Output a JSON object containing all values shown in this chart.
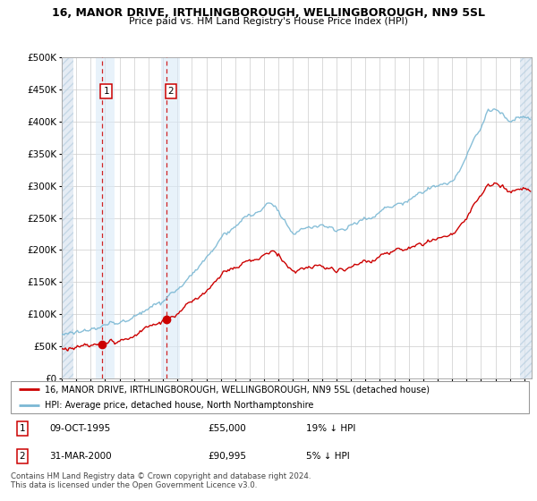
{
  "title": "16, MANOR DRIVE, IRTHLINGBOROUGH, WELLINGBOROUGH, NN9 5SL",
  "subtitle": "Price paid vs. HM Land Registry's House Price Index (HPI)",
  "legend_line1": "16, MANOR DRIVE, IRTHLINGBOROUGH, WELLINGBOROUGH, NN9 5SL (detached house)",
  "legend_line2": "HPI: Average price, detached house, North Northamptonshire",
  "footer": "Contains HM Land Registry data © Crown copyright and database right 2024.\nThis data is licensed under the Open Government Licence v3.0.",
  "transactions": [
    {
      "label": "1",
      "date": "09-OCT-1995",
      "price": 55000,
      "price_str": "£55,000",
      "pct": "19% ↓ HPI",
      "x": 1995.77
    },
    {
      "label": "2",
      "date": "31-MAR-2000",
      "price": 90995,
      "price_str": "£90,995",
      "pct": "5% ↓ HPI",
      "x": 2000.25
    }
  ],
  "hpi_line_color": "#7bb8d4",
  "price_line_color": "#cc0000",
  "transaction_dot_color": "#cc0000",
  "dashed_line_color": "#cc0000",
  "hatch_bg_color": "#dae5f0",
  "transaction_band_color": "#daeaf8",
  "ylim": [
    0,
    500000
  ],
  "yticks": [
    0,
    50000,
    100000,
    150000,
    200000,
    250000,
    300000,
    350000,
    400000,
    450000,
    500000
  ],
  "xlim_min": 1993.0,
  "xlim_max": 2025.5,
  "hatch_left_end": 1993.8,
  "hatch_right_start": 2024.7
}
